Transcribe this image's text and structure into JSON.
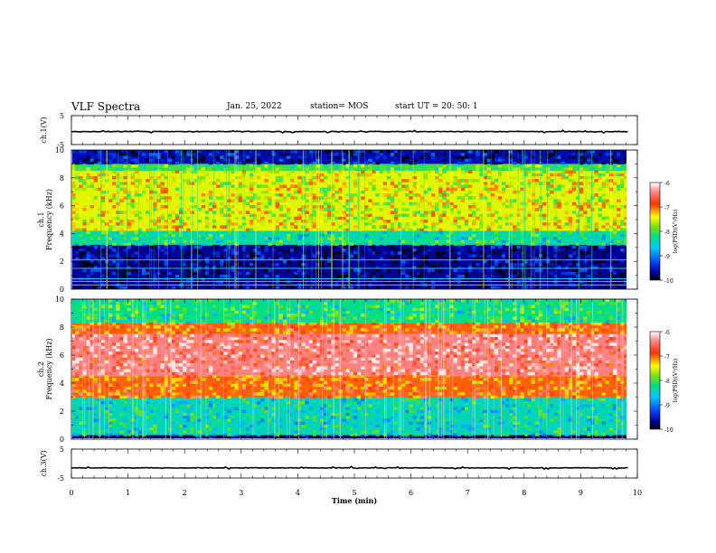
{
  "header": {
    "title": "VLF Spectra",
    "date": "Jan. 25, 2022",
    "station": "station= MOS",
    "start_ut": "start  UT =   20: 50: 1"
  },
  "chart_data": [
    {
      "type": "line",
      "name": "ch1_waveform",
      "ylabel": "ch.1(V)",
      "yticks": [
        "5",
        "-5"
      ],
      "ylim": [
        -5,
        5
      ],
      "level": -0.5
    },
    {
      "type": "heatmap",
      "name": "ch1_spectrogram",
      "ylabel": "ch.1\nFrequency (kHz)",
      "ylabel_lines": [
        "ch.1",
        "Frequency (kHz)"
      ],
      "yticks": [
        "0",
        "2",
        "4",
        "6",
        "8",
        "10"
      ],
      "ylim": [
        0,
        10
      ],
      "xlim": [
        0,
        10
      ],
      "bands": [
        {
          "from_khz": 0.0,
          "to_khz": 3.2,
          "level": -9.7
        },
        {
          "from_khz": 3.2,
          "to_khz": 4.2,
          "level": -8.3
        },
        {
          "from_khz": 4.2,
          "to_khz": 8.5,
          "level": -7.5
        },
        {
          "from_khz": 8.5,
          "to_khz": 9.0,
          "level": -8.0
        },
        {
          "from_khz": 9.0,
          "to_khz": 10.0,
          "level": -9.6
        }
      ],
      "lines_khz": [
        0.3,
        0.55,
        0.75,
        1.5,
        2.1
      ],
      "colorbar": {
        "label": "log(PSD)(V²/Hz)",
        "ticks": [
          "-6",
          "-7",
          "-8",
          "-9",
          "-10"
        ],
        "range": [
          -10,
          -6
        ]
      }
    },
    {
      "type": "heatmap",
      "name": "ch2_spectrogram",
      "ylabel": "ch.2\nFrequency (kHz)",
      "ylabel_lines": [
        "ch.2",
        "Frequency (kHz)"
      ],
      "yticks": [
        "0",
        "2",
        "4",
        "6",
        "8",
        "10"
      ],
      "ylim": [
        0,
        10
      ],
      "xlim": [
        0,
        10
      ],
      "bands": [
        {
          "from_khz": 0.0,
          "to_khz": 0.3,
          "level": -9.8
        },
        {
          "from_khz": 0.3,
          "to_khz": 3.0,
          "level": -8.4
        },
        {
          "from_khz": 3.0,
          "to_khz": 4.5,
          "level": -7.0
        },
        {
          "from_khz": 4.5,
          "to_khz": 7.5,
          "level": -6.4
        },
        {
          "from_khz": 7.5,
          "to_khz": 8.3,
          "level": -7.0
        },
        {
          "from_khz": 8.3,
          "to_khz": 10.0,
          "level": -8.2
        }
      ],
      "colorbar": {
        "label": "log(PSD)(V²/Hz)",
        "ticks": [
          "-6",
          "-7",
          "-8",
          "-9",
          "-10"
        ],
        "range": [
          -10,
          -6
        ]
      }
    },
    {
      "type": "line",
      "name": "ch3_waveform",
      "ylabel": "ch.3(V)",
      "yticks": [
        "5",
        "-5"
      ],
      "ylim": [
        -5,
        5
      ],
      "level": -1.5
    }
  ],
  "xaxis": {
    "label": "Time  (min)",
    "ticks": [
      "0",
      "1",
      "2",
      "3",
      "4",
      "5",
      "6",
      "7",
      "8",
      "9",
      "10"
    ],
    "xlim": [
      0,
      10
    ],
    "data_end": 9.83
  }
}
